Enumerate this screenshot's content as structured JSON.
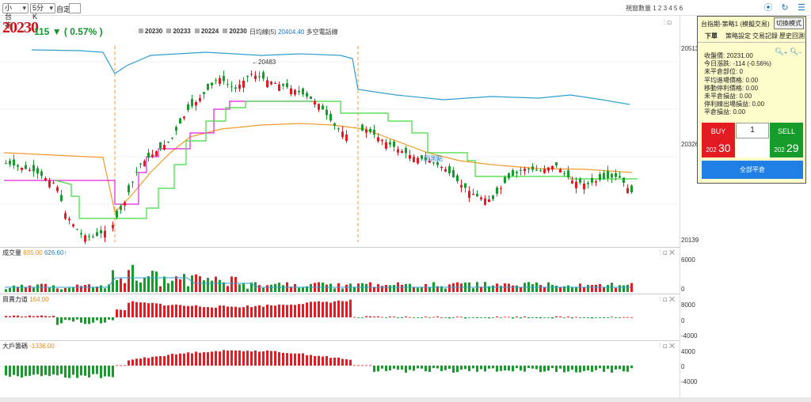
{
  "toolbar": {
    "symbol_select": "小台指",
    "interval_select": "5分K",
    "custom_label": "自定:",
    "count_label": "視窗數量 1 2 3 4 5 6"
  },
  "price": {
    "last": "20230",
    "change": "115 ▼ ( 0.57% )"
  },
  "ma": [
    {
      "value": "20230",
      "color": "#a0a0a0"
    },
    {
      "value": "20233",
      "color": "#a0a0a0"
    },
    {
      "value": "20224",
      "color": "#a0a0a0"
    },
    {
      "value": "20230",
      "color": "#a0a0a0"
    }
  ],
  "dayline": {
    "label": "日均線(5)",
    "value": "20404.40",
    "suffix": "多空電話線"
  },
  "main_axis": [
    "20513",
    "20326",
    "20139"
  ],
  "annotations": {
    "high": "←20483",
    "mark": "回測點"
  },
  "volume": {
    "label": "成交量",
    "v1": "835.00",
    "v2": "626.60↑",
    "axis": [
      "6000",
      "0"
    ]
  },
  "force": {
    "label": "買賣力道",
    "v1": "164.00",
    "axis": [
      "8000",
      "0",
      "-4000"
    ]
  },
  "big": {
    "label": "大戶籌碼",
    "v1": "-1336.00",
    "axis": [
      "4000",
      "0",
      "-4000"
    ]
  },
  "side": {
    "title": "台指期-策略1 (模擬交易)",
    "mode_button": "切換模式",
    "tabs": [
      "下單",
      "策略設定",
      "交易記錄",
      "歷史回測"
    ],
    "info": [
      "收盤價: 20231.00",
      "今日漲跌: -114 (-0.56%)",
      "未平倉部位: 0",
      "平均進場價格: 0.00",
      "移動停利價格: 0.00",
      "未平倉損益: 0.00",
      "停利線出場損益: 0.00",
      "平倉損益: 0.00"
    ],
    "buy_label": "BUY",
    "sell_label": "SELL",
    "qty": "1",
    "buy_prefix": "202",
    "buy_price": "30",
    "sell_prefix": "202",
    "sell_price": "29",
    "flat_button": "全部平倉"
  },
  "colors": {
    "up": "#e21c22",
    "down": "#169c2b",
    "blue": "#1f79c7"
  }
}
